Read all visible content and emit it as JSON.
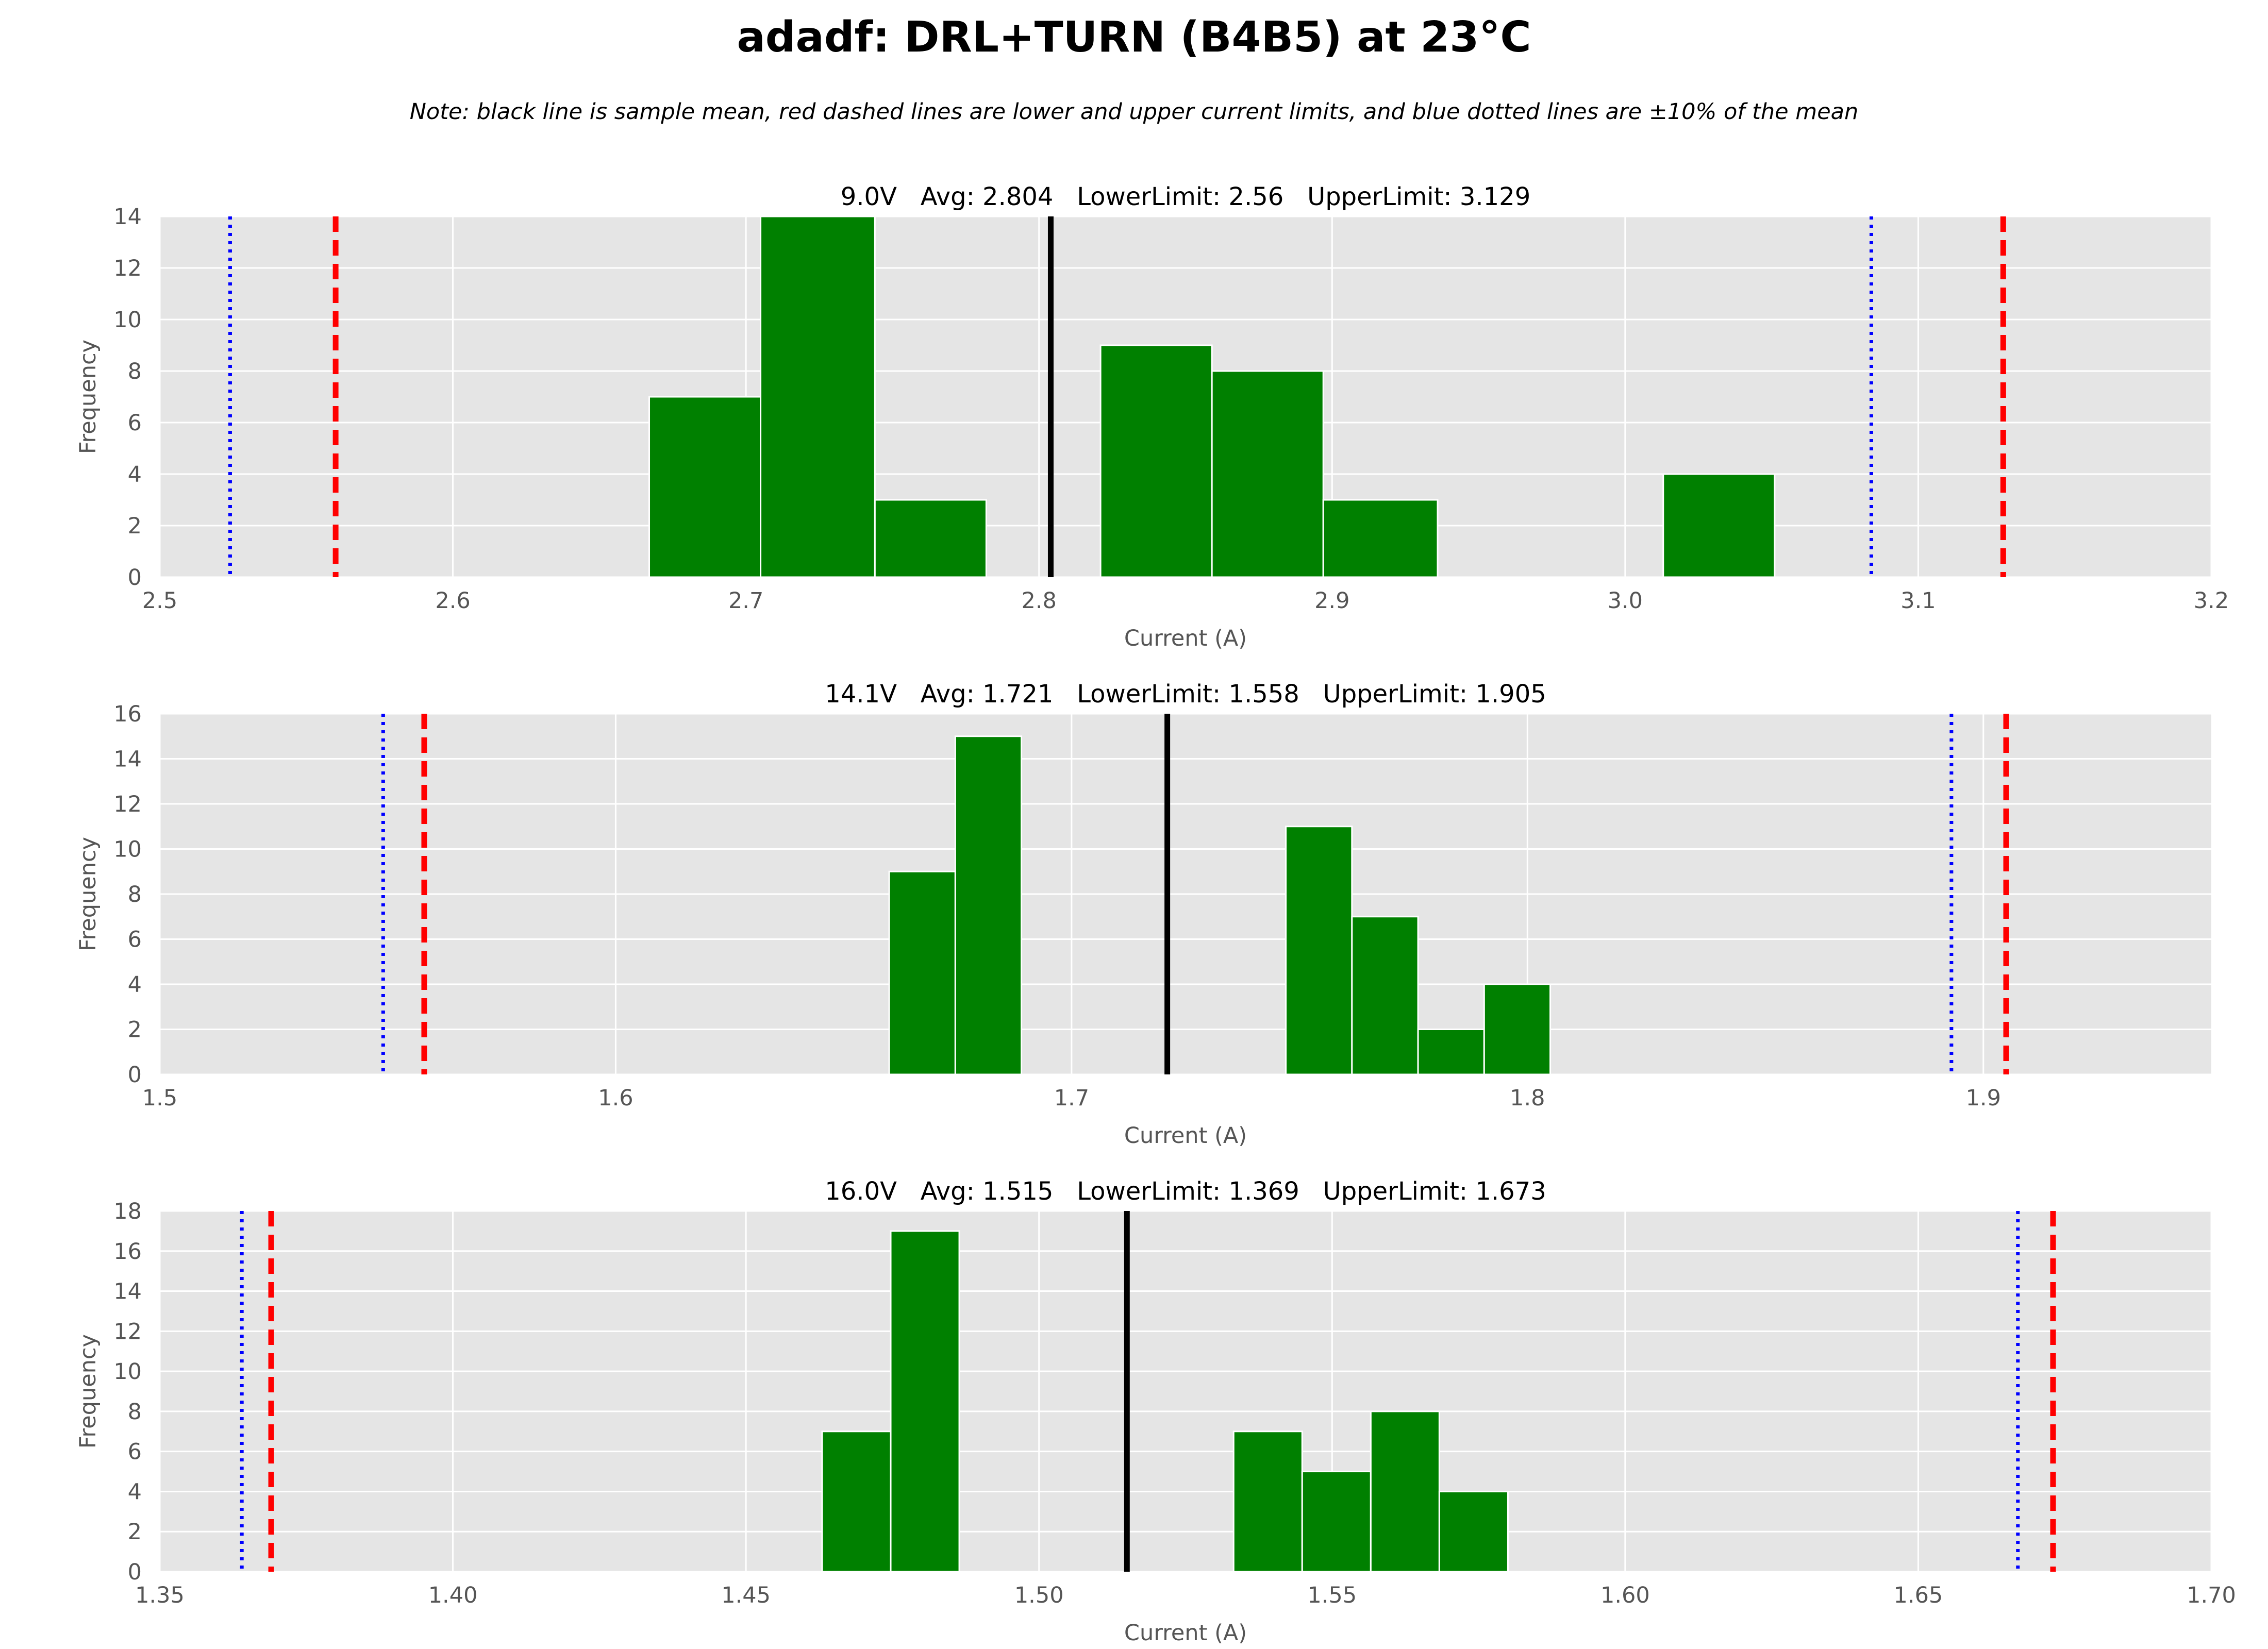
{
  "figure": {
    "title": "adadf: DRL+TURN (B4B5) at 23°C",
    "note": "Note: black line is sample mean, red dashed lines are lower and upper current limits, and blue dotted lines are ±10% of the mean"
  },
  "colors": {
    "background": "#e5e5e5",
    "grid": "#ffffff",
    "bars": "#008000",
    "mean_line": "#000000",
    "limit_line": "#ff0000",
    "ten_percent_line": "#0000ff"
  },
  "chart_data": [
    {
      "type": "bar",
      "title": "9.0V   Avg: 2.804   LowerLimit: 2.56   UpperLimit: 3.129",
      "xlabel": "Current (A)",
      "ylabel": "Frequency",
      "xlim": [
        2.5,
        3.2
      ],
      "ylim": [
        0,
        14
      ],
      "grid": true,
      "xticks": [
        2.5,
        2.6,
        2.7,
        2.8,
        2.9,
        3.0,
        3.1,
        3.2
      ],
      "xtick_labels": [
        "2.5",
        "2.6",
        "2.7",
        "2.8",
        "2.9",
        "3.0",
        "3.1",
        "3.2"
      ],
      "yticks": [
        0,
        2,
        4,
        6,
        8,
        10,
        12,
        14
      ],
      "ytick_labels": [
        "0",
        "2",
        "4",
        "6",
        "8",
        "10",
        "12",
        "14"
      ],
      "bin_edges": [
        2.667,
        2.705,
        2.744,
        2.782,
        2.821,
        2.859,
        2.897,
        2.936,
        2.974,
        3.013,
        3.051
      ],
      "counts": [
        7,
        14,
        3,
        0,
        9,
        8,
        3,
        0,
        0,
        4
      ],
      "mean": 2.804,
      "lower_limit": 2.56,
      "upper_limit": 3.129,
      "minus_10pct": 2.524,
      "plus_10pct": 3.084
    },
    {
      "type": "bar",
      "title": "14.1V   Avg: 1.721   LowerLimit: 1.558   UpperLimit: 1.905",
      "xlabel": "Current (A)",
      "ylabel": "Frequency",
      "xlim": [
        1.5,
        1.95
      ],
      "ylim": [
        0,
        16
      ],
      "grid": true,
      "xticks": [
        1.5,
        1.6,
        1.7,
        1.8,
        1.9
      ],
      "xtick_labels": [
        "1.5",
        "1.6",
        "1.7",
        "1.8",
        "1.9"
      ],
      "yticks": [
        0,
        2,
        4,
        6,
        8,
        10,
        12,
        14,
        16
      ],
      "ytick_labels": [
        "0",
        "2",
        "4",
        "6",
        "8",
        "10",
        "12",
        "14",
        "16"
      ],
      "bin_edges": [
        1.66,
        1.6745,
        1.689,
        1.7035,
        1.718,
        1.7325,
        1.747,
        1.7615,
        1.776,
        1.7905,
        1.805
      ],
      "counts": [
        9,
        15,
        0,
        0,
        0,
        0,
        11,
        7,
        2,
        4
      ],
      "mean": 1.721,
      "lower_limit": 1.558,
      "upper_limit": 1.905,
      "minus_10pct": 1.549,
      "plus_10pct": 1.893
    },
    {
      "type": "bar",
      "title": "16.0V   Avg: 1.515   LowerLimit: 1.369   UpperLimit: 1.673",
      "xlabel": "Current (A)",
      "ylabel": "Frequency",
      "xlim": [
        1.35,
        1.7
      ],
      "ylim": [
        0,
        18
      ],
      "grid": true,
      "xticks": [
        1.35,
        1.4,
        1.45,
        1.5,
        1.55,
        1.6,
        1.65,
        1.7
      ],
      "xtick_labels": [
        "1.35",
        "1.40",
        "1.45",
        "1.50",
        "1.55",
        "1.60",
        "1.65",
        "1.70"
      ],
      "yticks": [
        0,
        2,
        4,
        6,
        8,
        10,
        12,
        14,
        16,
        18
      ],
      "ytick_labels": [
        "0",
        "2",
        "4",
        "6",
        "8",
        "10",
        "12",
        "14",
        "16",
        "18"
      ],
      "bin_edges": [
        1.463,
        1.4747,
        1.4864,
        1.4981,
        1.5098,
        1.5215,
        1.5332,
        1.5449,
        1.5566,
        1.5683,
        1.58
      ],
      "counts": [
        7,
        17,
        0,
        0,
        0,
        0,
        7,
        5,
        8,
        4
      ],
      "mean": 1.515,
      "lower_limit": 1.369,
      "upper_limit": 1.673,
      "minus_10pct": 1.364,
      "plus_10pct": 1.667
    }
  ]
}
